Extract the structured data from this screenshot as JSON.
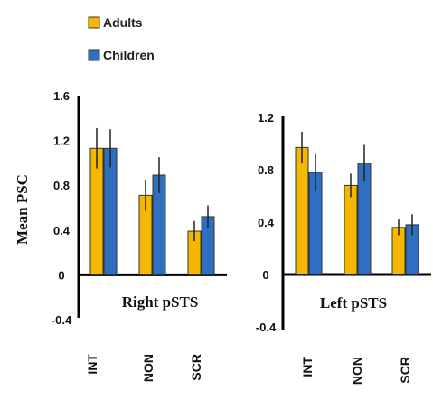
{
  "legend": {
    "items": [
      {
        "label": "Adults",
        "color": "#f5b800"
      },
      {
        "label": "Children",
        "color": "#2e6fbf"
      }
    ]
  },
  "ylabel": "Mean PSC",
  "colors": {
    "adults": "#f5b800",
    "children": "#2e6fbf",
    "edge": "#333333",
    "axis": "#000000"
  },
  "chart_data": [
    {
      "type": "bar",
      "title": "Right pSTS",
      "ylabel": "Mean PSC",
      "categories": [
        "INT",
        "NON",
        "SCR"
      ],
      "ylim": [
        -0.4,
        1.6
      ],
      "yticks": [
        "1.6",
        "1.2",
        "0.8",
        "0.4",
        "0",
        "-0.4"
      ],
      "series": [
        {
          "name": "Adults",
          "values": [
            1.13,
            0.71,
            0.39
          ],
          "error": [
            0.18,
            0.14,
            0.09
          ]
        },
        {
          "name": "Children",
          "values": [
            1.13,
            0.89,
            0.52
          ],
          "error": [
            0.17,
            0.16,
            0.1
          ]
        }
      ]
    },
    {
      "type": "bar",
      "title": "Left pSTS",
      "categories": [
        "INT",
        "NON",
        "SCR"
      ],
      "ylim": [
        -0.4,
        1.2
      ],
      "yticks": [
        "1.2",
        "0.8",
        "0.4",
        "0",
        "-0.4"
      ],
      "series": [
        {
          "name": "Adults",
          "values": [
            0.97,
            0.68,
            0.36
          ],
          "error": [
            0.12,
            0.09,
            0.06
          ]
        },
        {
          "name": "Children",
          "values": [
            0.78,
            0.85,
            0.38
          ],
          "error": [
            0.14,
            0.14,
            0.08
          ]
        }
      ]
    }
  ]
}
